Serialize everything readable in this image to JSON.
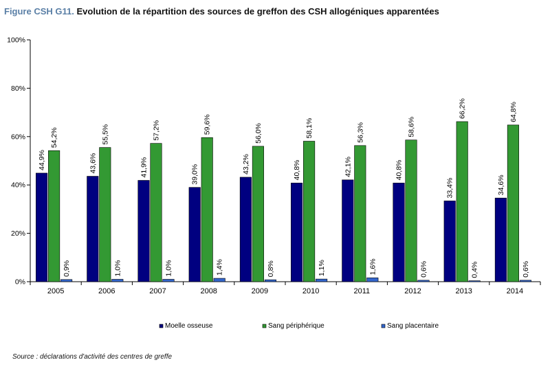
{
  "header": {
    "title_prefix": "Figure CSH G11.",
    "title": "Evolution de la répartition des sources de greffon des CSH allogéniques apparentées"
  },
  "footer": {
    "source": "Source : déclarations d'activité des centres de greffe"
  },
  "chart_data": {
    "type": "bar",
    "categories": [
      "2005",
      "2006",
      "2007",
      "2008",
      "2009",
      "2010",
      "2011",
      "2012",
      "2013",
      "2014"
    ],
    "series": [
      {
        "name": "Moelle osseuse",
        "color": "#000080",
        "values": [
          44.9,
          43.6,
          41.9,
          39.0,
          43.2,
          40.8,
          42.1,
          40.8,
          33.4,
          34.6
        ],
        "labels": [
          "44,9%",
          "43,6%",
          "41,9%",
          "39,0%",
          "43,2%",
          "40,8%",
          "42,1%",
          "40,8%",
          "33,4%",
          "34,6%"
        ]
      },
      {
        "name": "Sang périphérique",
        "color": "#339933",
        "values": [
          54.2,
          55.5,
          57.2,
          59.6,
          56.0,
          58.1,
          56.3,
          58.6,
          66.2,
          64.8
        ],
        "labels": [
          "54,2%",
          "55,5%",
          "57,2%",
          "59,6%",
          "56,0%",
          "58,1%",
          "56,3%",
          "58,6%",
          "66,2%",
          "64,8%"
        ]
      },
      {
        "name": "Sang placentaire",
        "color": "#3366cc",
        "values": [
          0.9,
          1.0,
          1.0,
          1.4,
          0.8,
          1.1,
          1.6,
          0.6,
          0.4,
          0.6
        ],
        "labels": [
          "0,9%",
          "1,0%",
          "1,0%",
          "1,4%",
          "0,8%",
          "1,1%",
          "1,6%",
          "0,6%",
          "0,4%",
          "0,6%"
        ]
      }
    ],
    "yticks": [
      "0%",
      "20%",
      "40%",
      "60%",
      "80%",
      "100%"
    ],
    "ylim": [
      0,
      100
    ],
    "xlabel": "",
    "ylabel": "",
    "grid": false,
    "legend_position": "bottom"
  }
}
